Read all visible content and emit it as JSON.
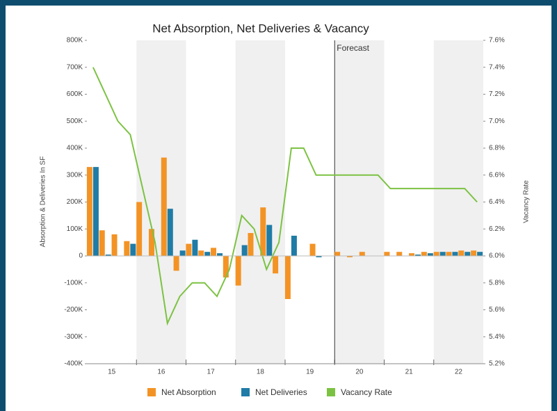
{
  "chart_data": {
    "type": "bar-line",
    "title": "Net Absorption, Net Deliveries & Vacancy",
    "ylabel": "Absorption & Deliveries In SF",
    "y2label": "Vacancy Rate",
    "annotation": {
      "label": "Forecast",
      "index": 20
    },
    "categories": [
      null,
      null,
      null,
      null,
      null,
      null,
      null,
      null,
      null,
      null,
      null,
      null,
      null,
      null,
      null,
      null,
      null,
      null,
      null,
      null,
      null,
      null,
      null,
      null,
      null,
      null,
      null,
      null,
      null,
      null,
      null,
      null
    ],
    "year_labels": [
      "15",
      "16",
      "17",
      "18",
      "19",
      "20",
      "21",
      "22"
    ],
    "series": [
      {
        "name": "Net Absorption",
        "color": "#f39325",
        "kind": "bar",
        "values": [
          330000,
          95000,
          80000,
          55000,
          200000,
          100000,
          365000,
          -55000,
          45000,
          20000,
          30000,
          -80000,
          -110000,
          85000,
          180000,
          -65000,
          -160000,
          0,
          45000,
          0,
          15000,
          -5000,
          15000,
          0,
          15000,
          15000,
          10000,
          15000,
          15000,
          15000,
          20000,
          20000
        ]
      },
      {
        "name": "Net Deliveries",
        "color": "#1f7ca6",
        "kind": "bar",
        "values": [
          330000,
          5000,
          0,
          45000,
          0,
          0,
          175000,
          20000,
          60000,
          15000,
          10000,
          0,
          40000,
          0,
          115000,
          0,
          75000,
          0,
          -5000,
          0,
          0,
          0,
          0,
          0,
          0,
          0,
          5000,
          10000,
          15000,
          15000,
          15000,
          15000
        ]
      },
      {
        "name": "Vacancy Rate",
        "color": "#7cc242",
        "kind": "line",
        "axis": "y2",
        "values": [
          7.4,
          7.2,
          7.0,
          6.9,
          6.5,
          6.1,
          5.5,
          5.7,
          5.8,
          5.8,
          5.7,
          5.9,
          6.3,
          6.2,
          5.9,
          6.1,
          6.8,
          6.8,
          6.6,
          6.6,
          6.6,
          6.6,
          6.6,
          6.6,
          6.5,
          6.5,
          6.5,
          6.5,
          6.5,
          6.5,
          6.5,
          6.4
        ]
      }
    ],
    "ylim": [
      -400000,
      800000
    ],
    "yticks": [
      {
        "value": -400000,
        "label": "-400K"
      },
      {
        "value": -300000,
        "label": "-300K"
      },
      {
        "value": -200000,
        "label": "-200K"
      },
      {
        "value": -100000,
        "label": "-100K"
      },
      0,
      {
        "value": 100000,
        "label": "100K"
      },
      {
        "value": 200000,
        "label": "200K"
      },
      {
        "value": 300000,
        "label": "300K"
      },
      {
        "value": 400000,
        "label": "400K"
      },
      {
        "value": 500000,
        "label": "500K"
      },
      {
        "value": 600000,
        "label": "600K"
      },
      {
        "value": 700000,
        "label": "700K"
      },
      {
        "value": 800000,
        "label": "800K"
      }
    ],
    "y2lim": [
      5.2,
      7.6
    ],
    "y2ticks": [
      {
        "value": 5.2,
        "label": "5.2%"
      },
      {
        "value": 5.4,
        "label": "5.4%"
      },
      {
        "value": 5.6,
        "label": "5.6%"
      },
      {
        "value": 5.8,
        "label": "5.8%"
      },
      {
        "value": 6.0,
        "label": "6.0%"
      },
      {
        "value": 6.2,
        "label": "6.2%"
      },
      {
        "value": 6.4,
        "label": "6.4%"
      },
      {
        "value": 6.6,
        "label": "6.6%"
      },
      {
        "value": 6.8,
        "label": "6.8%"
      },
      {
        "value": 7.0,
        "label": "7.0%"
      },
      {
        "value": 7.2,
        "label": "7.2%"
      },
      {
        "value": 7.4,
        "label": "7.4%"
      },
      {
        "value": 7.6,
        "label": "7.6%"
      }
    ],
    "legend": "bottom"
  }
}
